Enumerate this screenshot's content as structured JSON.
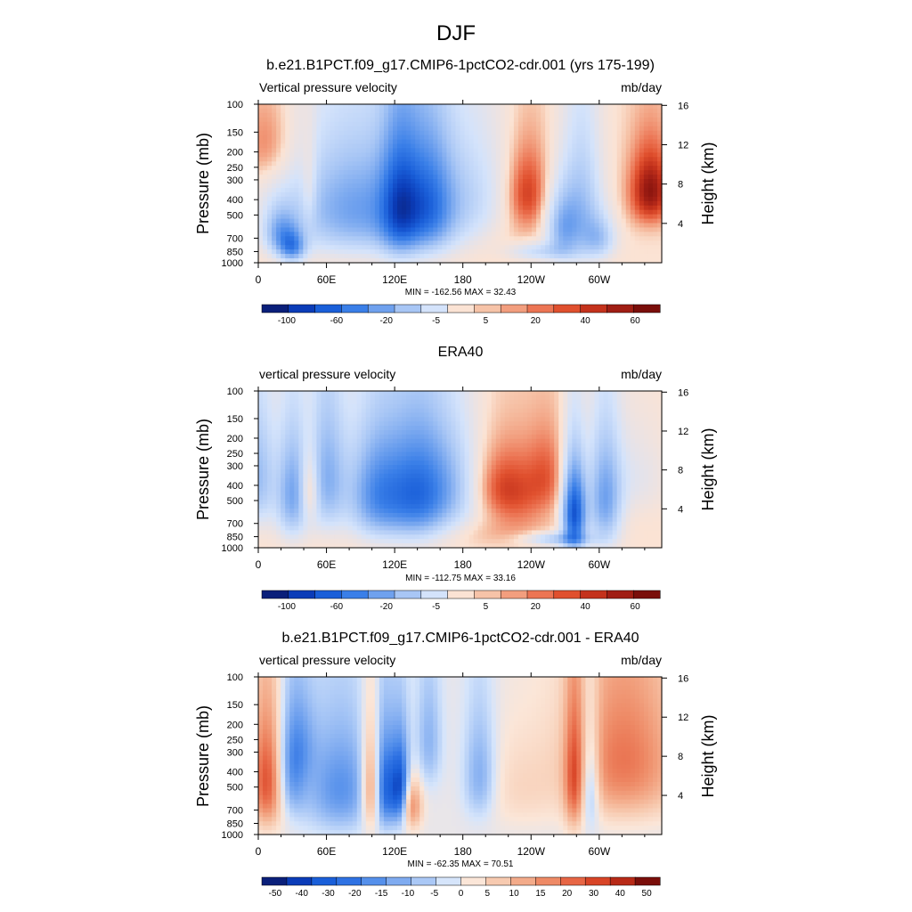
{
  "figure": {
    "title": "DJF"
  },
  "chart_data": [
    {
      "type": "heatmap",
      "title": "b.e21.B1PCT.f09_g17.CMIP6-1pctCO2-cdr.001 (yrs 175-199)",
      "left_label": "Vertical pressure velocity",
      "right_label": "mb/day",
      "ylabel": "Pressure (mb)",
      "ylabel_right": "Height (km)",
      "x_ticks": [
        "0",
        "60E",
        "120E",
        "180",
        "120W",
        "60W"
      ],
      "x_tick_positions_deg": [
        0,
        60,
        120,
        180,
        240,
        300
      ],
      "xlim_deg": [
        0,
        355
      ],
      "y_ticks": [
        "100",
        "150",
        "200",
        "250",
        "300",
        "400",
        "500",
        "700",
        "850",
        "1000"
      ],
      "ylim_mb": [
        1000,
        100
      ],
      "y_right_ticks": [
        "16",
        "12",
        "8",
        "4"
      ],
      "min_max_text": "MIN = -162.56  MAX =  32.43",
      "min": -162.56,
      "max": 32.43,
      "colorbar": {
        "labels": [
          "-100",
          "-60",
          "-20",
          "-5",
          "5",
          "20",
          "40",
          "60"
        ],
        "colors": [
          "#0a1f7a",
          "#0b3cb8",
          "#1a5fd9",
          "#3a7fe8",
          "#6fa1ee",
          "#a8c6f5",
          "#d4e3fb",
          "#fbe3d4",
          "#f6c3a8",
          "#f29e7e",
          "#ec7554",
          "#e0502e",
          "#c4321c",
          "#a01e14",
          "#7a0e0a"
        ]
      }
    },
    {
      "type": "heatmap",
      "title": "ERA40",
      "left_label": "vertical pressure velocity",
      "right_label": "mb/day",
      "ylabel": "Pressure (mb)",
      "ylabel_right": "Height (km)",
      "x_ticks": [
        "0",
        "60E",
        "120E",
        "180",
        "120W",
        "60W"
      ],
      "x_tick_positions_deg": [
        0,
        60,
        120,
        180,
        240,
        300
      ],
      "xlim_deg": [
        0,
        355
      ],
      "y_ticks": [
        "100",
        "150",
        "200",
        "250",
        "300",
        "400",
        "500",
        "700",
        "850",
        "1000"
      ],
      "ylim_mb": [
        1000,
        100
      ],
      "y_right_ticks": [
        "16",
        "12",
        "8",
        "4"
      ],
      "min_max_text": "MIN = -112.75  MAX =  33.16",
      "min": -112.75,
      "max": 33.16,
      "colorbar": {
        "labels": [
          "-100",
          "-60",
          "-20",
          "-5",
          "5",
          "20",
          "40",
          "60"
        ],
        "colors": [
          "#0a1f7a",
          "#0b3cb8",
          "#1a5fd9",
          "#3a7fe8",
          "#6fa1ee",
          "#a8c6f5",
          "#d4e3fb",
          "#fbe3d4",
          "#f6c3a8",
          "#f29e7e",
          "#ec7554",
          "#e0502e",
          "#c4321c",
          "#a01e14",
          "#7a0e0a"
        ]
      }
    },
    {
      "type": "heatmap",
      "title": "b.e21.B1PCT.f09_g17.CMIP6-1pctCO2-cdr.001 - ERA40",
      "left_label": "vertical pressure velocity",
      "right_label": "mb/day",
      "ylabel": "Pressure (mb)",
      "ylabel_right": "Height (km)",
      "x_ticks": [
        "0",
        "60E",
        "120E",
        "180",
        "120W",
        "60W"
      ],
      "x_tick_positions_deg": [
        0,
        60,
        120,
        180,
        240,
        300
      ],
      "xlim_deg": [
        0,
        355
      ],
      "y_ticks": [
        "100",
        "150",
        "200",
        "250",
        "300",
        "400",
        "500",
        "700",
        "850",
        "1000"
      ],
      "ylim_mb": [
        1000,
        100
      ],
      "y_right_ticks": [
        "16",
        "12",
        "8",
        "4"
      ],
      "min_max_text": "MIN = -62.35  MAX =  70.51",
      "min": -62.35,
      "max": 70.51,
      "colorbar": {
        "labels": [
          "-50",
          "-40",
          "-30",
          "-20",
          "-15",
          "-10",
          "-5",
          "0",
          "5",
          "10",
          "15",
          "20",
          "30",
          "40",
          "50"
        ],
        "colors": [
          "#0a1f7a",
          "#0b3cb8",
          "#1a5fd9",
          "#2f72e3",
          "#5590eb",
          "#7fabf0",
          "#aac8f6",
          "#d6e5fb",
          "#fbe6d8",
          "#f7cab0",
          "#f3ab8a",
          "#ee8a66",
          "#e76645",
          "#d84527",
          "#b82a17",
          "#7a0e0a"
        ]
      }
    }
  ]
}
